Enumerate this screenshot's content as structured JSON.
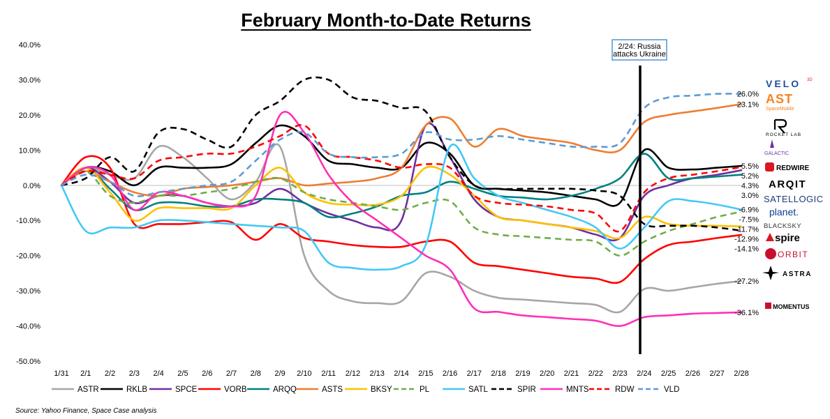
{
  "chart_data": {
    "type": "line",
    "title": "February Month-to-Date Returns",
    "x": [
      "1/31",
      "2/1",
      "2/2",
      "2/3",
      "2/4",
      "2/5",
      "2/6",
      "2/7",
      "2/8",
      "2/9",
      "2/10",
      "2/11",
      "2/12",
      "2/13",
      "2/14",
      "2/15",
      "2/16",
      "2/17",
      "2/18",
      "2/19",
      "2/20",
      "2/21",
      "2/22",
      "2/23",
      "2/24",
      "2/25",
      "2/26",
      "2/27",
      "2/28"
    ],
    "y_ticks": [
      "40.0%",
      "30.0%",
      "20.0%",
      "10.0%",
      "0.0%",
      "-10.0%",
      "-20.0%",
      "-30.0%",
      "-40.0%",
      "-50.0%"
    ],
    "ylim": [
      -50,
      40
    ],
    "annotation": {
      "line1": "2/24: Russia",
      "line2": "attacks Ukraine",
      "x": "2/24"
    },
    "series": [
      {
        "name": "ASTR",
        "color": "#a6a6a6",
        "dash": "solid",
        "end_label": "-27.2%",
        "values": [
          0,
          5,
          3,
          2,
          11,
          8,
          2,
          -4,
          1,
          11,
          -20,
          -30,
          -33,
          -33.5,
          -33,
          -25,
          -26,
          -30,
          -32,
          -32.5,
          -33,
          -33.5,
          -34,
          -36,
          -29.5,
          -30,
          -29,
          -28,
          -27.2
        ]
      },
      {
        "name": "RKLB",
        "color": "#000000",
        "dash": "solid",
        "end_label": "5.5%",
        "values": [
          0,
          5,
          4,
          0,
          5,
          5,
          5,
          6,
          12,
          17,
          14,
          7,
          6,
          5,
          5,
          12,
          9,
          0,
          -1,
          -1.5,
          -2,
          -3,
          -4,
          -5,
          10,
          5,
          4.5,
          5,
          5.5
        ]
      },
      {
        "name": "SPCE",
        "color": "#7030a0",
        "dash": "solid",
        "end_label": "4.3%",
        "values": [
          0,
          5,
          1,
          -5,
          -3,
          -3,
          -5,
          -6,
          -5,
          -1,
          -5,
          -8,
          -10,
          -12,
          -10,
          17,
          8,
          -4,
          -9,
          -10,
          -11,
          -12,
          -14,
          -15,
          -3,
          0,
          2,
          3,
          4.3
        ]
      },
      {
        "name": "VORB",
        "color": "#ff0000",
        "dash": "solid",
        "end_label": "-14.1%",
        "values": [
          0,
          8,
          5,
          -11,
          -11,
          -11,
          -10.5,
          -10.5,
          -15.5,
          -11,
          -15,
          -16,
          -17,
          -17.5,
          -17.5,
          -16,
          -16,
          -22,
          -23,
          -24,
          -25,
          -26,
          -26.5,
          -27.5,
          -21,
          -17,
          -16,
          -15,
          -14.1
        ]
      },
      {
        "name": "ARQQ",
        "color": "#008080",
        "dash": "solid",
        "end_label": "3.0%",
        "values": [
          0,
          5,
          -1,
          -7,
          -5,
          -5,
          -6,
          -6,
          -4,
          -4,
          -5,
          -9,
          -8,
          -6,
          -3,
          -2,
          1,
          -1,
          -3,
          -3.5,
          -4,
          -3,
          -1,
          2,
          9,
          2,
          2,
          2.5,
          3
        ]
      },
      {
        "name": "ASTS",
        "color": "#ed7d31",
        "dash": "solid",
        "end_label": "23.1%",
        "values": [
          0,
          4,
          1,
          -2,
          -3,
          -1,
          -0.5,
          0,
          1,
          2,
          0,
          0.5,
          1,
          2,
          5,
          17,
          19,
          11,
          16,
          14,
          13,
          12,
          10,
          10,
          18,
          20,
          21,
          22,
          23.1
        ]
      },
      {
        "name": "BKSY",
        "color": "#ffc000",
        "dash": "solid",
        "end_label": "-11.7%",
        "values": [
          0,
          5,
          -2,
          -10,
          -6.5,
          -6.5,
          -6.5,
          -6.5,
          0,
          5,
          -2,
          -5,
          -5.5,
          -5.5,
          -3,
          5,
          3,
          -3,
          -9,
          -10,
          -11,
          -12,
          -13,
          -15,
          -9,
          -11,
          -11.5,
          -11.5,
          -11.7
        ]
      },
      {
        "name": "PL",
        "color": "#70ad47",
        "dash": "dash",
        "end_label": "-7.5%",
        "values": [
          0,
          4,
          -3,
          -5,
          -3,
          -3,
          -2,
          -1,
          1,
          2,
          -2,
          -4,
          -5,
          -6,
          -7,
          -5,
          -4.5,
          -12,
          -14,
          -14.5,
          -15,
          -15.5,
          -16,
          -20,
          -16,
          -13,
          -11,
          -9,
          -7.5
        ]
      },
      {
        "name": "SATL",
        "color": "#44c8f5",
        "dash": "solid",
        "end_label": "-6.9%",
        "values": [
          0,
          -13,
          -12,
          -12,
          -10,
          -10,
          -10.5,
          -11,
          -11.5,
          -12,
          -13,
          -22,
          -23.5,
          -24,
          -23,
          -17,
          11,
          2,
          -3,
          -5,
          -7,
          -9,
          -12,
          -18,
          -12,
          -4.5,
          -4.5,
          -5.5,
          -6.9
        ]
      },
      {
        "name": "SPIR",
        "color": "#000000",
        "dash": "dash",
        "end_label": "-12.9%",
        "values": [
          0,
          2,
          8,
          4,
          15,
          16,
          13,
          11,
          20,
          24,
          30,
          30,
          25,
          24,
          22,
          21,
          8,
          0,
          -1,
          -1,
          -1,
          -1,
          -1.5,
          -3,
          -11,
          -11.5,
          -11.5,
          -12,
          -12.9
        ]
      },
      {
        "name": "MNTS",
        "color": "#ff2fb7",
        "dash": "solid",
        "end_label": "-36.1%",
        "values": [
          0,
          5,
          3,
          -7,
          -2,
          -3,
          -5,
          -6,
          -3,
          20,
          15,
          3,
          -5,
          -10,
          -15,
          -20,
          -24,
          -35,
          -36,
          -37,
          -37.5,
          -38,
          -38.5,
          -40,
          -37.5,
          -37,
          -36.5,
          -36.3,
          -36.1
        ]
      },
      {
        "name": "RDW",
        "color": "#ff0000",
        "dash": "dash",
        "end_label": "5.2%",
        "values": [
          0,
          4,
          3,
          2,
          7,
          8,
          9,
          9,
          11,
          14,
          17,
          9,
          8,
          7,
          5,
          6,
          5,
          -3,
          -5,
          -5.5,
          -6,
          -7,
          -8,
          -13,
          -2,
          2,
          3,
          4,
          5.2
        ]
      },
      {
        "name": "VLD",
        "color": "#5b9bd5",
        "dash": "dash",
        "end_label": "26.0%",
        "values": [
          0,
          3,
          1,
          -3,
          -2,
          -1,
          0,
          1,
          7,
          13,
          15,
          9,
          8,
          8,
          9,
          15,
          13,
          13,
          14,
          13,
          12,
          11,
          11,
          12,
          22,
          25,
          25.5,
          26,
          26
        ]
      }
    ]
  },
  "logos": {
    "velo": "VELO",
    "velo_sup": "3D",
    "ast": "AST",
    "ast_sub": "SpaceMobile",
    "rocketlab": "ROCKET LAB",
    "galactic": "GALACTIC",
    "redwire": "REDWIRE",
    "arqit": "ARQIT",
    "satellogic": "SATELLOGIC",
    "planet": "planet.",
    "blacksky": "BLACKSKY",
    "spire": "spire",
    "orbit": "ORBIT",
    "astra": "ASTRA",
    "momentus": "MOMENTUS"
  },
  "source": "Source: Yahoo Finance, Space Case analysis"
}
